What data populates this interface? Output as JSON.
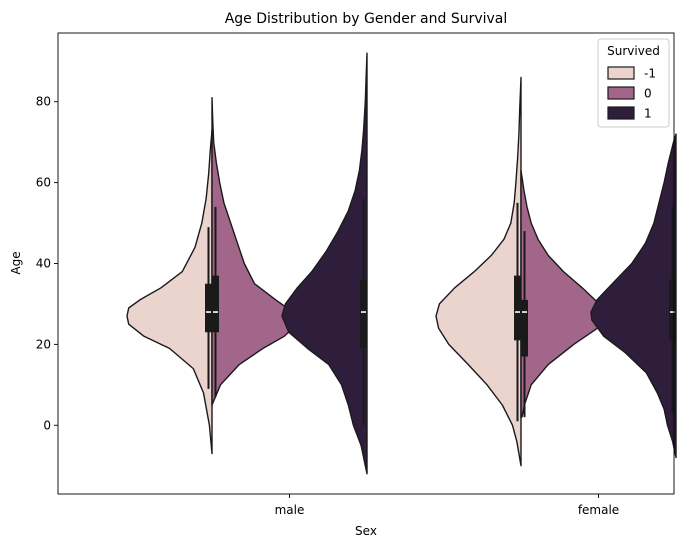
{
  "chart_data": {
    "type": "violin",
    "title": "Age Distribution by Gender and Survival",
    "xlabel": "Sex",
    "ylabel": "Age",
    "categories": [
      "male",
      "female"
    ],
    "ylim": [
      -17,
      97
    ],
    "yticks": [
      0,
      20,
      40,
      60,
      80
    ],
    "grid": false,
    "legend": {
      "title": "Survived",
      "placement": "top-right",
      "entries": [
        {
          "label": "-1",
          "color": "#ebd3ce"
        },
        {
          "label": "0",
          "color": "#a2668b"
        },
        {
          "label": "1",
          "color": "#2e1e3c"
        }
      ]
    },
    "violins": [
      {
        "category": "male",
        "group": "-1",
        "side": "left",
        "color": "#ebd3ce",
        "min": -7,
        "max": 73,
        "q1": 23,
        "median": 28,
        "q3": 35,
        "whisker_low": 9,
        "whisker_high": 49,
        "profile": [
          [
            -7,
            0
          ],
          [
            0,
            0.03
          ],
          [
            8,
            0.1
          ],
          [
            14,
            0.22
          ],
          [
            19,
            0.5
          ],
          [
            22,
            0.8
          ],
          [
            25,
            0.98
          ],
          [
            27,
            1.0
          ],
          [
            29,
            0.98
          ],
          [
            31,
            0.85
          ],
          [
            34,
            0.6
          ],
          [
            38,
            0.35
          ],
          [
            44,
            0.2
          ],
          [
            50,
            0.12
          ],
          [
            56,
            0.07
          ],
          [
            62,
            0.04
          ],
          [
            68,
            0.02
          ],
          [
            73,
            0
          ]
        ]
      },
      {
        "category": "male",
        "group": "0",
        "side": "right",
        "color": "#a2668b",
        "min": 5,
        "max": 81,
        "q1": 23,
        "median": 28,
        "q3": 37,
        "whisker_low": 7,
        "whisker_high": 54,
        "profile": [
          [
            5,
            0
          ],
          [
            10,
            0.1
          ],
          [
            15,
            0.32
          ],
          [
            19,
            0.6
          ],
          [
            22,
            0.85
          ],
          [
            25,
            1.0
          ],
          [
            28,
            0.95
          ],
          [
            31,
            0.75
          ],
          [
            35,
            0.5
          ],
          [
            40,
            0.38
          ],
          [
            45,
            0.3
          ],
          [
            50,
            0.22
          ],
          [
            55,
            0.14
          ],
          [
            60,
            0.09
          ],
          [
            65,
            0.05
          ],
          [
            70,
            0.02
          ],
          [
            75,
            0.01
          ],
          [
            81,
            0
          ]
        ]
      },
      {
        "category": "male",
        "group": "1",
        "side": "left",
        "color": "#2e1e3c",
        "min": -12,
        "max": 92,
        "q1": 19,
        "median": 28,
        "q3": 36,
        "whisker_low": 0,
        "whisker_high": 56,
        "profile": [
          [
            -12,
            0
          ],
          [
            -5,
            0.07
          ],
          [
            0,
            0.16
          ],
          [
            5,
            0.22
          ],
          [
            10,
            0.3
          ],
          [
            15,
            0.45
          ],
          [
            19,
            0.7
          ],
          [
            23,
            0.92
          ],
          [
            27,
            1.0
          ],
          [
            30,
            0.96
          ],
          [
            34,
            0.82
          ],
          [
            38,
            0.65
          ],
          [
            43,
            0.48
          ],
          [
            48,
            0.34
          ],
          [
            53,
            0.22
          ],
          [
            58,
            0.14
          ],
          [
            63,
            0.09
          ],
          [
            68,
            0.06
          ],
          [
            73,
            0.04
          ],
          [
            80,
            0.02
          ],
          [
            86,
            0.01
          ],
          [
            92,
            0
          ]
        ]
      },
      {
        "category": "female",
        "group": "-1",
        "side": "left",
        "color": "#ebd3ce",
        "min": -10,
        "max": 86,
        "q1": 21,
        "median": 28,
        "q3": 37,
        "whisker_low": 1,
        "whisker_high": 55,
        "profile": [
          [
            -10,
            0
          ],
          [
            -4,
            0.05
          ],
          [
            0,
            0.1
          ],
          [
            5,
            0.22
          ],
          [
            10,
            0.4
          ],
          [
            15,
            0.62
          ],
          [
            20,
            0.85
          ],
          [
            24,
            0.97
          ],
          [
            27,
            1.0
          ],
          [
            30,
            0.96
          ],
          [
            34,
            0.78
          ],
          [
            38,
            0.55
          ],
          [
            42,
            0.35
          ],
          [
            46,
            0.2
          ],
          [
            50,
            0.12
          ],
          [
            55,
            0.08
          ],
          [
            60,
            0.06
          ],
          [
            66,
            0.04
          ],
          [
            72,
            0.025
          ],
          [
            78,
            0.015
          ],
          [
            86,
            0
          ]
        ]
      },
      {
        "category": "female",
        "group": "0",
        "side": "right",
        "color": "#a2668b",
        "min": 2,
        "max": 63,
        "q1": 17,
        "median": 28,
        "q3": 31,
        "whisker_low": 2,
        "whisker_high": 48,
        "profile": [
          [
            2,
            0.01
          ],
          [
            5,
            0.04
          ],
          [
            10,
            0.12
          ],
          [
            15,
            0.32
          ],
          [
            20,
            0.62
          ],
          [
            24,
            0.9
          ],
          [
            27,
            1.0
          ],
          [
            30,
            0.92
          ],
          [
            34,
            0.72
          ],
          [
            38,
            0.5
          ],
          [
            42,
            0.32
          ],
          [
            46,
            0.2
          ],
          [
            50,
            0.12
          ],
          [
            54,
            0.07
          ],
          [
            58,
            0.035
          ],
          [
            63,
            0
          ]
        ]
      },
      {
        "category": "female",
        "group": "1",
        "side": "left",
        "color": "#2e1e3c",
        "min": -8,
        "max": 72,
        "q1": 21,
        "median": 28,
        "q3": 36,
        "whisker_low": 3,
        "whisker_high": 54,
        "profile": [
          [
            -8,
            0
          ],
          [
            -4,
            0.04
          ],
          [
            0,
            0.1
          ],
          [
            4,
            0.14
          ],
          [
            8,
            0.22
          ],
          [
            13,
            0.35
          ],
          [
            18,
            0.6
          ],
          [
            22,
            0.85
          ],
          [
            26,
            0.99
          ],
          [
            28,
            1.0
          ],
          [
            31,
            0.93
          ],
          [
            35,
            0.75
          ],
          [
            40,
            0.52
          ],
          [
            45,
            0.36
          ],
          [
            50,
            0.26
          ],
          [
            55,
            0.2
          ],
          [
            60,
            0.14
          ],
          [
            65,
            0.09
          ],
          [
            70,
            0.03
          ],
          [
            72,
            0
          ]
        ]
      }
    ]
  }
}
